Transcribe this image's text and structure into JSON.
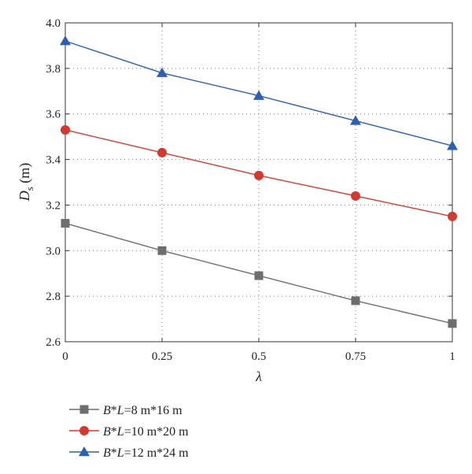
{
  "chart_data": {
    "type": "line",
    "xlabel": "λ",
    "ylabel": {
      "main": "D",
      "sub": "s",
      "unit": " (m)"
    },
    "x": [
      0,
      0.25,
      0.5,
      0.75,
      1
    ],
    "x_ticks": [
      "0",
      "0.25",
      "0.5",
      "0.75",
      "1"
    ],
    "xlim": [
      0,
      1
    ],
    "ylim": [
      2.6,
      4.0
    ],
    "y_ticks": [
      "2.6",
      "2.8",
      "3.0",
      "3.2",
      "3.4",
      "3.6",
      "3.8",
      "4.0"
    ],
    "grid": "dotted",
    "legend_position": "bottom-left (below plot)",
    "series": [
      {
        "name_italic_1": "B",
        "name_mid": "*",
        "name_italic_2": "L",
        "name_rest": "=8 m*16 m",
        "color": "#6e6e6e",
        "marker": "square",
        "values": [
          3.12,
          3.0,
          2.89,
          2.78,
          2.68
        ]
      },
      {
        "name_italic_1": "B",
        "name_mid": "*",
        "name_italic_2": "L",
        "name_rest": "=10 m*20 m",
        "color": "#d23a2f",
        "marker": "circle",
        "values": [
          3.53,
          3.43,
          3.33,
          3.24,
          3.15
        ]
      },
      {
        "name_italic_1": "B",
        "name_mid": "*",
        "name_italic_2": "L",
        "name_rest": "=12 m*24 m",
        "color": "#2f5fb3",
        "marker": "triangle",
        "values": [
          3.92,
          3.78,
          3.68,
          3.57,
          3.46
        ]
      }
    ]
  }
}
